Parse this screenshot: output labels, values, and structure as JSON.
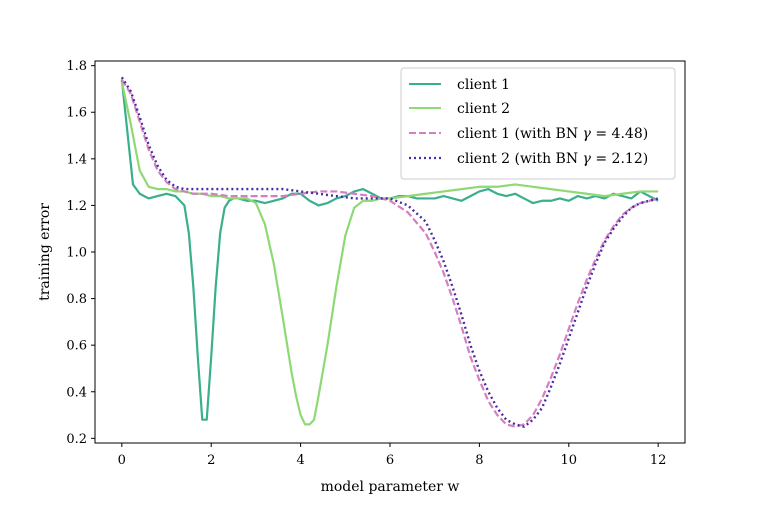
{
  "chart_data": {
    "type": "line",
    "title": "",
    "xlabel": "model parameter w",
    "ylabel": "training error",
    "xlim": [
      -0.6,
      12.6
    ],
    "ylim": [
      0.18,
      1.82
    ],
    "xticks": [
      0,
      2,
      4,
      6,
      8,
      10,
      12
    ],
    "xtick_labels": [
      "0",
      "2",
      "4",
      "6",
      "8",
      "10",
      "12"
    ],
    "yticks": [
      0.2,
      0.4,
      0.6,
      0.8,
      1.0,
      1.2,
      1.4,
      1.6,
      1.8
    ],
    "ytick_labels": [
      "0.2",
      "0.4",
      "0.6",
      "0.8",
      "1.0",
      "1.2",
      "1.4",
      "1.6",
      "1.8"
    ],
    "grid": false,
    "legend_position": "top-right",
    "legend": {
      "s0": "client 1",
      "s1": "client 2",
      "s2_prefix": "client 1 (with BN ",
      "s2_gamma": "γ",
      "s2_suffix": " = 4.48)",
      "s3_prefix": "client 2 (with BN ",
      "s3_gamma": "γ",
      "s3_suffix": " = 2.12)"
    },
    "series": [
      {
        "name": "client 1",
        "color": "#3aaf8d",
        "style": "solid",
        "x": [
          0,
          0.25,
          0.4,
          0.6,
          0.8,
          1.0,
          1.2,
          1.4,
          1.5,
          1.6,
          1.7,
          1.8,
          1.9,
          2.0,
          2.1,
          2.2,
          2.3,
          2.4,
          2.5,
          2.6,
          2.8,
          3.0,
          3.2,
          3.4,
          3.6,
          3.8,
          4.0,
          4.2,
          4.4,
          4.6,
          4.8,
          5.0,
          5.2,
          5.4,
          5.6,
          5.8,
          6.0,
          6.2,
          6.4,
          6.6,
          6.8,
          7.0,
          7.2,
          7.4,
          7.6,
          7.8,
          8.0,
          8.2,
          8.4,
          8.6,
          8.8,
          9.0,
          9.2,
          9.4,
          9.6,
          9.8,
          10.0,
          10.2,
          10.4,
          10.6,
          10.8,
          11.0,
          11.2,
          11.4,
          11.6,
          11.8,
          12.0
        ],
        "y": [
          1.74,
          1.29,
          1.25,
          1.23,
          1.24,
          1.25,
          1.24,
          1.2,
          1.08,
          0.85,
          0.55,
          0.28,
          0.28,
          0.55,
          0.85,
          1.08,
          1.19,
          1.22,
          1.23,
          1.23,
          1.22,
          1.22,
          1.21,
          1.22,
          1.23,
          1.25,
          1.25,
          1.22,
          1.2,
          1.21,
          1.23,
          1.24,
          1.26,
          1.27,
          1.25,
          1.23,
          1.23,
          1.24,
          1.24,
          1.23,
          1.23,
          1.23,
          1.24,
          1.23,
          1.22,
          1.24,
          1.26,
          1.27,
          1.25,
          1.24,
          1.25,
          1.23,
          1.21,
          1.22,
          1.22,
          1.23,
          1.22,
          1.24,
          1.23,
          1.24,
          1.23,
          1.25,
          1.24,
          1.23,
          1.26,
          1.24,
          1.22
        ]
      },
      {
        "name": "client 2",
        "color": "#8fd974",
        "style": "solid",
        "x": [
          0,
          0.2,
          0.4,
          0.6,
          0.8,
          1.0,
          1.2,
          1.4,
          1.6,
          1.8,
          2.0,
          2.2,
          2.4,
          2.6,
          2.8,
          3.0,
          3.2,
          3.4,
          3.6,
          3.8,
          3.9,
          4.0,
          4.1,
          4.2,
          4.3,
          4.4,
          4.6,
          4.8,
          5.0,
          5.2,
          5.4,
          5.6,
          5.8,
          6.0,
          6.4,
          6.8,
          7.2,
          7.6,
          8.0,
          8.4,
          8.8,
          9.2,
          9.6,
          10.0,
          10.4,
          10.8,
          11.2,
          11.6,
          12.0
        ],
        "y": [
          1.73,
          1.55,
          1.35,
          1.28,
          1.27,
          1.27,
          1.26,
          1.26,
          1.25,
          1.25,
          1.24,
          1.24,
          1.23,
          1.23,
          1.23,
          1.21,
          1.12,
          0.95,
          0.72,
          0.48,
          0.38,
          0.3,
          0.26,
          0.26,
          0.28,
          0.38,
          0.6,
          0.85,
          1.07,
          1.19,
          1.22,
          1.22,
          1.23,
          1.23,
          1.24,
          1.25,
          1.26,
          1.27,
          1.28,
          1.28,
          1.29,
          1.28,
          1.27,
          1.26,
          1.25,
          1.24,
          1.25,
          1.26,
          1.26
        ]
      },
      {
        "name": "client 1 (with BN γ = 4.48)",
        "color": "#d37fc1",
        "style": "dashed",
        "x": [
          0,
          0.2,
          0.4,
          0.6,
          0.8,
          1.0,
          1.2,
          1.4,
          1.6,
          1.8,
          2.0,
          2.4,
          2.8,
          3.2,
          3.6,
          4.0,
          4.4,
          4.8,
          5.2,
          5.6,
          6.0,
          6.4,
          6.8,
          7.0,
          7.2,
          7.4,
          7.6,
          7.8,
          8.0,
          8.2,
          8.4,
          8.6,
          8.8,
          9.0,
          9.2,
          9.4,
          9.6,
          9.8,
          10.0,
          10.2,
          10.4,
          10.6,
          10.8,
          11.0,
          11.2,
          11.4,
          11.6,
          11.8,
          12.0
        ],
        "y": [
          1.74,
          1.68,
          1.56,
          1.44,
          1.35,
          1.3,
          1.27,
          1.26,
          1.25,
          1.25,
          1.25,
          1.24,
          1.24,
          1.24,
          1.24,
          1.25,
          1.26,
          1.26,
          1.25,
          1.24,
          1.22,
          1.17,
          1.08,
          1.0,
          0.91,
          0.8,
          0.68,
          0.55,
          0.45,
          0.36,
          0.3,
          0.26,
          0.25,
          0.26,
          0.3,
          0.37,
          0.46,
          0.56,
          0.67,
          0.78,
          0.88,
          0.97,
          1.05,
          1.11,
          1.16,
          1.19,
          1.21,
          1.22,
          1.23
        ]
      },
      {
        "name": "client 2 (with BN γ = 2.12)",
        "color": "#4a2ba3",
        "style": "dotted",
        "x": [
          0,
          0.2,
          0.4,
          0.6,
          0.8,
          1.0,
          1.2,
          1.4,
          1.6,
          2.0,
          2.4,
          2.8,
          3.2,
          3.6,
          4.0,
          4.4,
          4.8,
          5.2,
          5.6,
          6.0,
          6.4,
          6.8,
          7.0,
          7.2,
          7.4,
          7.6,
          7.8,
          8.0,
          8.2,
          8.4,
          8.6,
          8.8,
          9.0,
          9.2,
          9.4,
          9.6,
          9.8,
          10.0,
          10.2,
          10.4,
          10.6,
          10.8,
          11.0,
          11.2,
          11.4,
          11.6,
          11.8,
          12.0
        ],
        "y": [
          1.75,
          1.69,
          1.58,
          1.46,
          1.37,
          1.31,
          1.28,
          1.27,
          1.27,
          1.27,
          1.27,
          1.27,
          1.27,
          1.27,
          1.26,
          1.25,
          1.24,
          1.23,
          1.23,
          1.23,
          1.2,
          1.13,
          1.05,
          0.96,
          0.85,
          0.73,
          0.6,
          0.49,
          0.4,
          0.33,
          0.28,
          0.26,
          0.25,
          0.28,
          0.33,
          0.42,
          0.52,
          0.63,
          0.74,
          0.85,
          0.95,
          1.04,
          1.1,
          1.15,
          1.19,
          1.21,
          1.22,
          1.23
        ]
      }
    ]
  }
}
